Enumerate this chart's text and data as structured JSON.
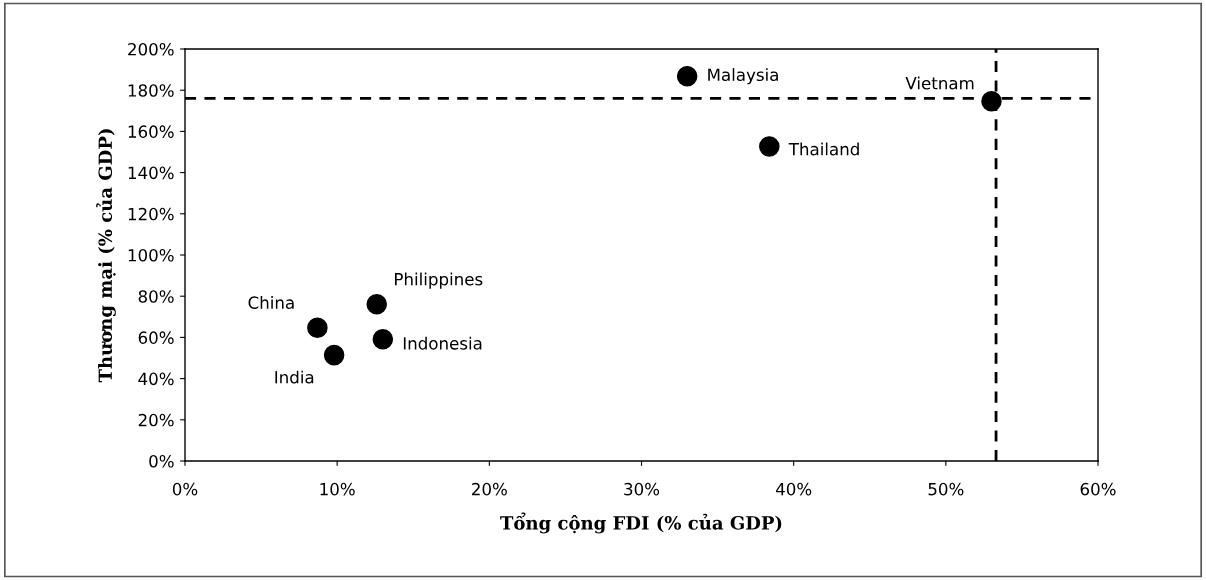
{
  "chart_data": {
    "type": "scatter",
    "xlabel": "Tổng cộng FDI (% của GDP)",
    "ylabel": "Thương mại (% của GDP)",
    "x": [
      8.7,
      9.8,
      12.6,
      13.0,
      33.0,
      38.4,
      53.0
    ],
    "values": [
      64.7,
      51.4,
      76.1,
      59.1,
      186.8,
      152.7,
      174.6
    ],
    "color": "#000000",
    "marker": "circle",
    "xlim": [
      0,
      60
    ],
    "ylim": [
      0,
      200
    ],
    "xticks": [
      {
        "value": 0,
        "label": "0%"
      },
      {
        "value": 10,
        "label": "10%"
      },
      {
        "value": 20,
        "label": "20%"
      },
      {
        "value": 30,
        "label": "30%"
      },
      {
        "value": 40,
        "label": "40%"
      },
      {
        "value": 50,
        "label": "50%"
      },
      {
        "value": 60,
        "label": "60%"
      }
    ],
    "yticks": [
      {
        "value": 0,
        "label": "0%"
      },
      {
        "value": 20,
        "label": "20%"
      },
      {
        "value": 40,
        "label": "40%"
      },
      {
        "value": 60,
        "label": "60%"
      },
      {
        "value": 80,
        "label": "80%"
      },
      {
        "value": 100,
        "label": "100%"
      },
      {
        "value": 120,
        "label": "120%"
      },
      {
        "value": 140,
        "label": "140%"
      },
      {
        "value": 160,
        "label": "160%"
      },
      {
        "value": 180,
        "label": "180%"
      },
      {
        "value": 200,
        "label": "200%"
      }
    ],
    "ref_lines": [
      {
        "axis": "y",
        "value": 176,
        "color": "#000000",
        "line_style": "dashed"
      },
      {
        "axis": "x",
        "value": 53.3,
        "color": "#000000",
        "line_style": "dashed"
      }
    ],
    "annotations": [
      {
        "text": "China",
        "x": 8.7,
        "y": 64.7
      },
      {
        "text": "India",
        "x": 9.8,
        "y": 51.4
      },
      {
        "text": "Philippines",
        "x": 12.6,
        "y": 76.1
      },
      {
        "text": "Indonesia",
        "x": 13.0,
        "y": 59.1
      },
      {
        "text": "Malaysia",
        "x": 33.0,
        "y": 186.8
      },
      {
        "text": "Thailand",
        "x": 38.4,
        "y": 152.7
      },
      {
        "text": "Vietnam",
        "x": 53.0,
        "y": 174.6
      }
    ],
    "grid": false,
    "legend": false
  }
}
